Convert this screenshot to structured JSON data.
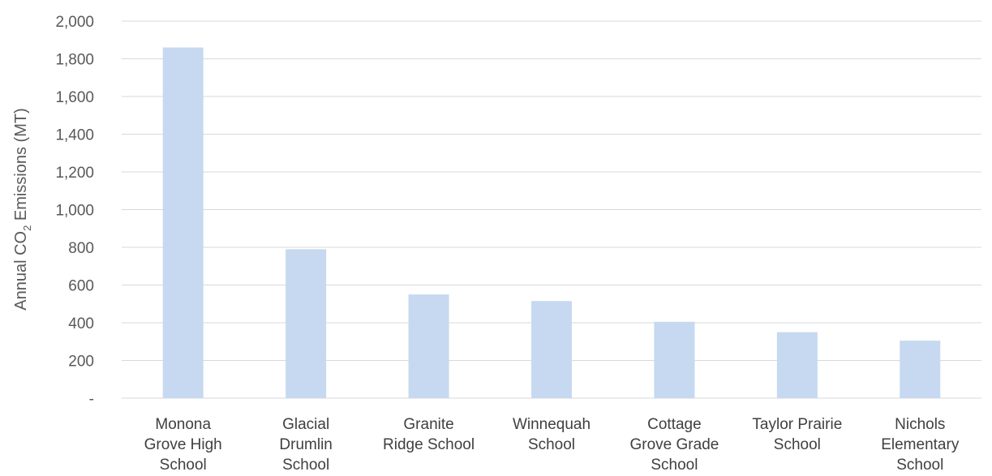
{
  "chart_data": {
    "type": "bar",
    "categories": [
      "Monona Grove High School",
      "Glacial Drumlin School",
      "Granite Ridge School",
      "Winnequah School",
      "Cottage Grove Grade School",
      "Taylor Prairie School",
      "Nichols Elementary School"
    ],
    "category_lines": [
      [
        "Monona",
        "Grove High",
        "School"
      ],
      [
        "Glacial",
        "Drumlin",
        "School"
      ],
      [
        "Granite",
        "Ridge School"
      ],
      [
        "Winnequah",
        "School"
      ],
      [
        "Cottage",
        "Grove Grade",
        "School"
      ],
      [
        "Taylor Prairie",
        "School"
      ],
      [
        "Nichols",
        "Elementary",
        "School"
      ]
    ],
    "values": [
      1860,
      790,
      550,
      515,
      405,
      350,
      305
    ],
    "ylabel_main": "Annual CO",
    "ylabel_sub": "2",
    "ylabel_rest": " Emissions (MT)",
    "ylim": [
      0,
      2000
    ],
    "yticks": [
      0,
      200,
      400,
      600,
      800,
      1000,
      1200,
      1400,
      1600,
      1800,
      2000
    ],
    "ytick_labels": [
      "-",
      "200",
      "400",
      "600",
      "800",
      "1,000",
      "1,200",
      "1,400",
      "1,600",
      "1,800",
      "2,000"
    ],
    "grid": true,
    "bar_color": "#c6d9f0"
  }
}
